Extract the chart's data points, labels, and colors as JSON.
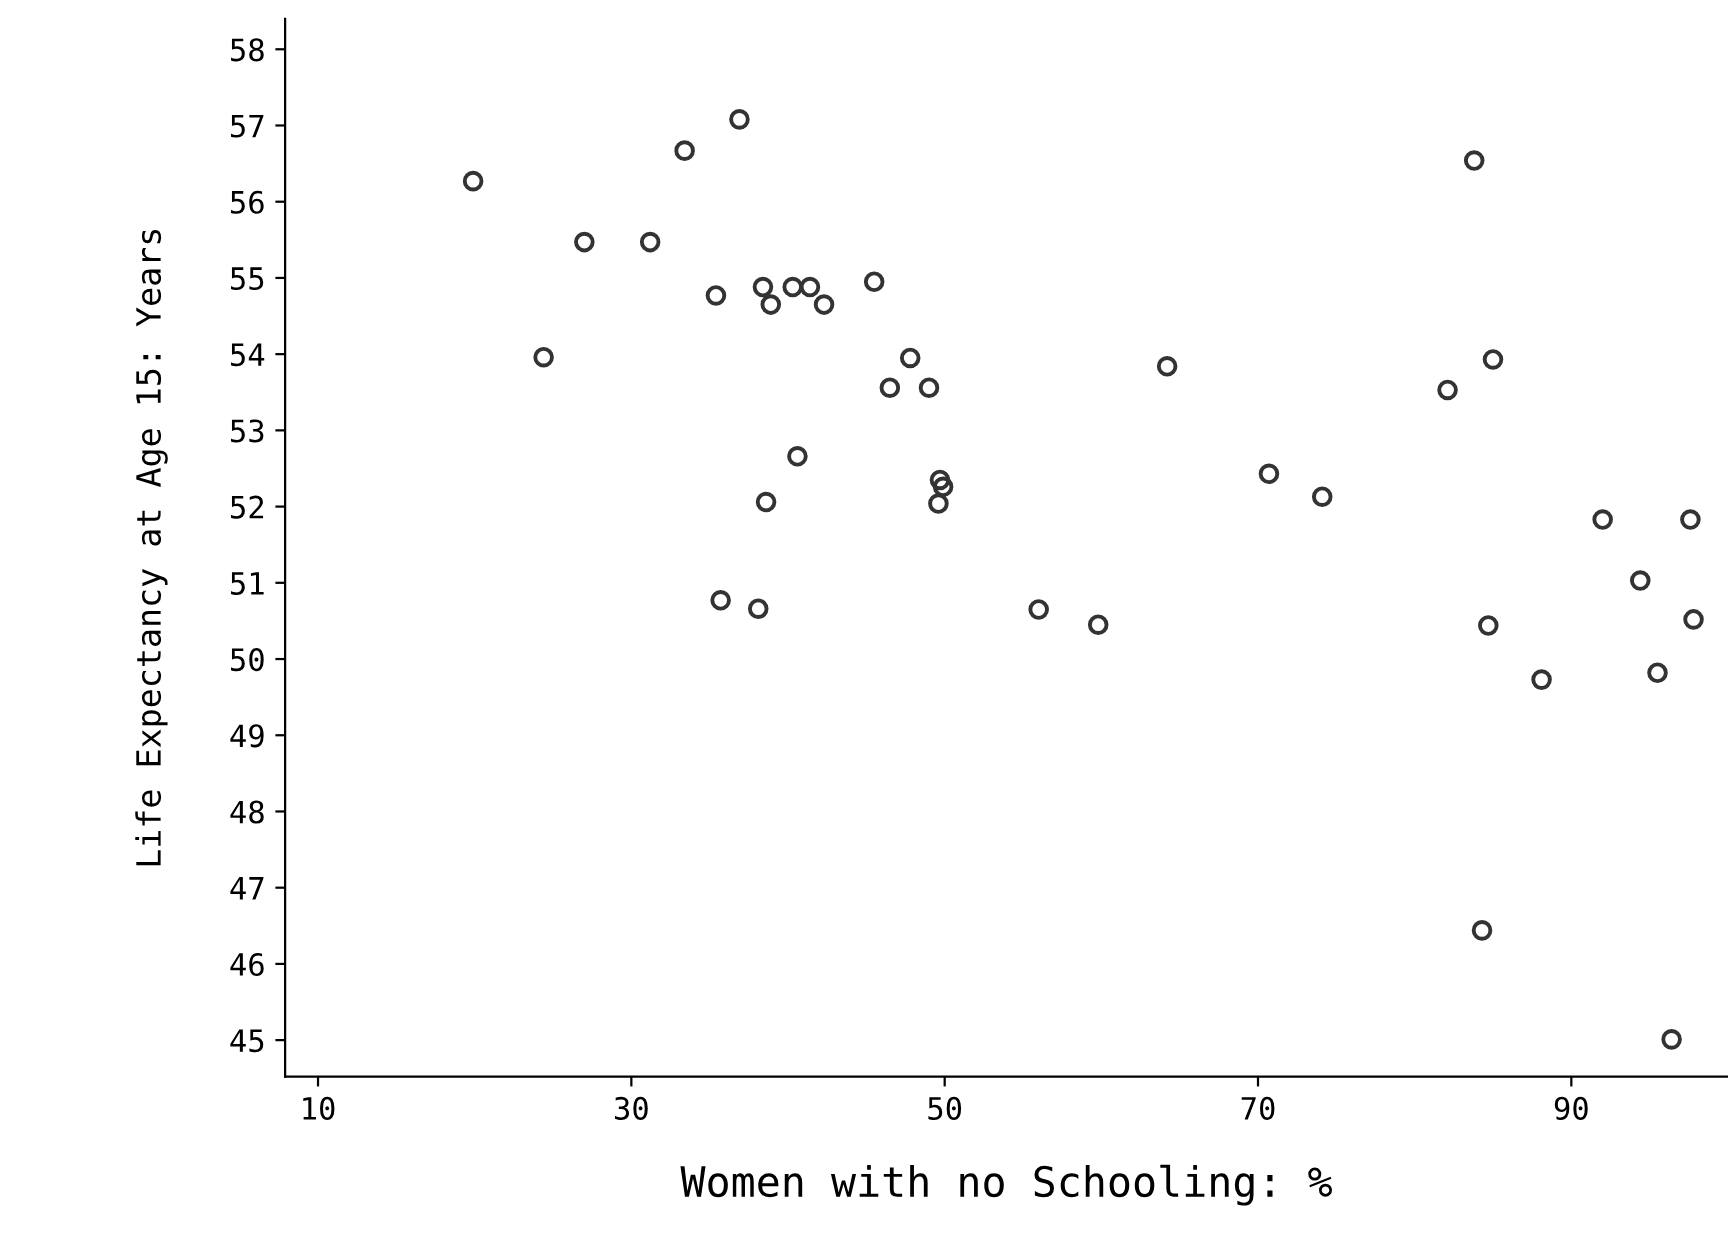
{
  "chart_data": {
    "type": "scatter",
    "xlabel": "Women with no Schooling: %",
    "ylabel": "Life Expectancy at Age 15: Years",
    "xlim": [
      7.9,
      100
    ],
    "ylim": [
      44.52,
      58.4
    ],
    "xticks": [
      10,
      30,
      50,
      70,
      90
    ],
    "yticks": [
      45,
      46,
      47,
      48,
      49,
      50,
      51,
      52,
      53,
      54,
      55,
      56,
      57,
      58
    ],
    "grid": false,
    "legend": false,
    "marker": "circle",
    "series": [
      {
        "color": "#333333",
        "x": [
          19.9,
          36.9,
          33.4,
          27.0,
          31.2,
          35.4,
          38.4,
          38.9,
          40.3,
          41.4,
          42.3,
          45.5,
          24.4,
          47.8,
          46.5,
          49.0,
          40.6,
          38.6,
          49.7,
          49.9,
          49.6,
          35.7,
          38.1,
          83.8,
          64.2,
          85.0,
          82.1,
          70.7,
          74.1,
          92.0,
          97.6,
          94.4,
          97.8,
          84.7,
          56.0,
          59.8,
          88.1,
          95.5,
          84.3,
          96.4
        ],
        "values": [
          56.27,
          57.08,
          56.67,
          55.47,
          55.47,
          54.77,
          54.88,
          54.65,
          54.88,
          54.88,
          54.65,
          54.95,
          53.96,
          53.95,
          53.56,
          53.56,
          52.66,
          52.06,
          52.35,
          52.26,
          52.04,
          50.77,
          50.66,
          56.54,
          53.84,
          53.93,
          53.53,
          52.43,
          52.13,
          51.83,
          51.83,
          51.03,
          50.52,
          50.44,
          50.65,
          50.45,
          49.73,
          49.82,
          46.44,
          45.01
        ]
      }
    ]
  }
}
